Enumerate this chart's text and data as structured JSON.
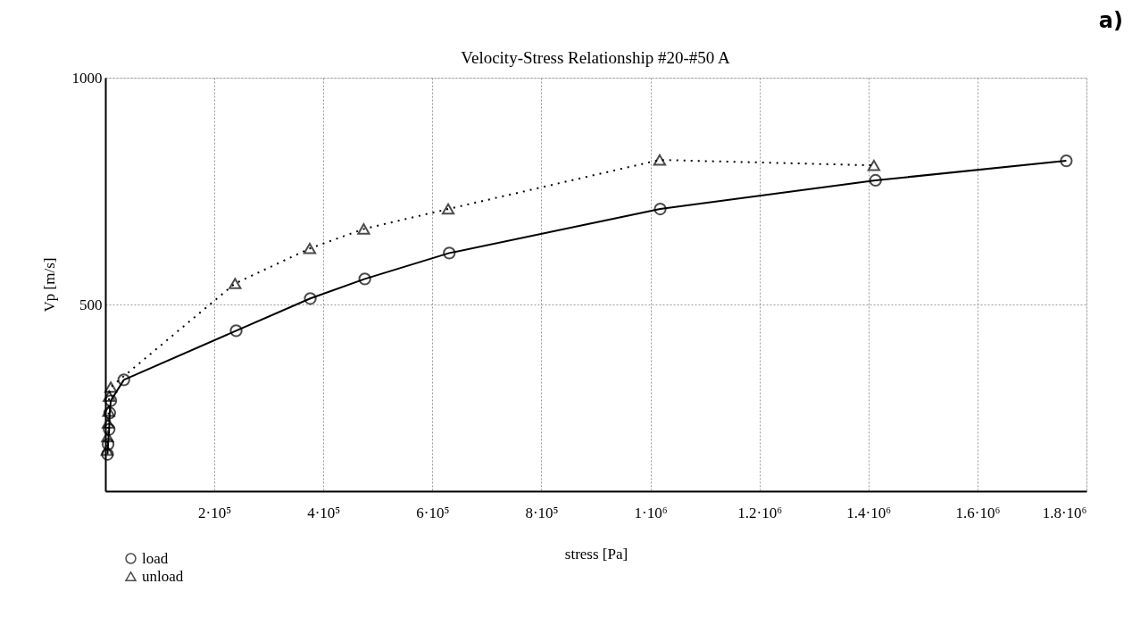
{
  "chart_data": {
    "type": "line",
    "title": "Velocity-Stress Relationship #20-#50 A",
    "xlabel": "stress [Pa]",
    "ylabel": "Vp [m/s]",
    "xlim": [
      0,
      1800000
    ],
    "ylim": [
      90,
      1000
    ],
    "xticks": [
      {
        "value": 200000,
        "label": "2·10⁵"
      },
      {
        "value": 400000,
        "label": "4·10⁵"
      },
      {
        "value": 600000,
        "label": "6·10⁵"
      },
      {
        "value": 800000,
        "label": "8·10⁵"
      },
      {
        "value": 1000000,
        "label": "1·10⁶"
      },
      {
        "value": 1200000,
        "label": "1.2·10⁶"
      },
      {
        "value": 1400000,
        "label": "1.4·10⁶"
      },
      {
        "value": 1600000,
        "label": "1.6·10⁶"
      },
      {
        "value": 1800000,
        "label": "1.8·10⁶"
      }
    ],
    "yticks": [
      500,
      1000
    ],
    "grid": true,
    "legend": "bottom left",
    "annotations": [
      "a)"
    ],
    "series": [
      {
        "name": "load",
        "color": "#000000",
        "marker": "circle",
        "line_style": "solid",
        "x": [
          4000,
          5000,
          7000,
          8000,
          10000,
          34000,
          240000,
          376000,
          476000,
          631000,
          1018000,
          1413000,
          1763000
        ],
        "values": [
          171,
          193,
          226,
          262,
          289,
          335,
          443,
          514,
          557,
          614,
          711,
          774,
          817
        ]
      },
      {
        "name": "unload",
        "color": "#000000",
        "marker": "triangle",
        "line_style": "dotted",
        "x": [
          3000,
          4000,
          5000,
          6000,
          7000,
          10000,
          238000,
          375000,
          474000,
          629000,
          1017000,
          1410000
        ],
        "values": [
          180,
          210,
          240,
          266,
          299,
          319,
          547,
          624,
          667,
          711,
          819,
          807
        ]
      }
    ]
  }
}
